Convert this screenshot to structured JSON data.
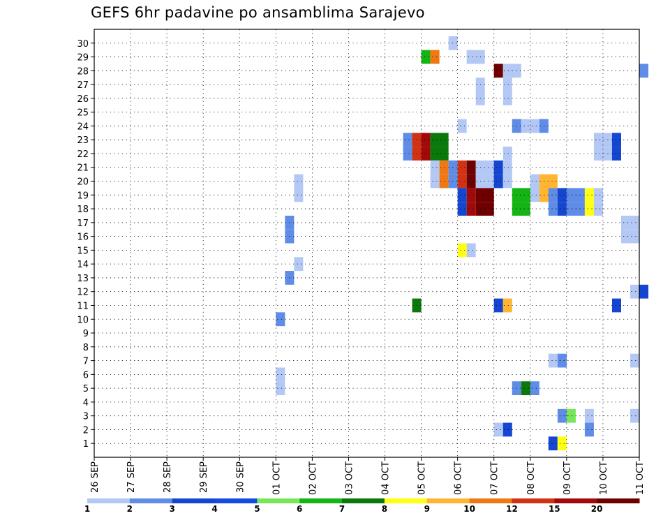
{
  "chart_data": {
    "type": "heatmap",
    "title": "GEFS 6hr padavine po ansamblima Sarajevo",
    "x_axis": {
      "tick_labels": [
        "26 SEP",
        "27 SEP",
        "28 SEP",
        "29 SEP",
        "30 SEP",
        "01 OCT",
        "02 OCT",
        "03 OCT",
        "04 OCT",
        "05 OCT",
        "06 OCT",
        "07 OCT",
        "08 OCT",
        "09 OCT",
        "10 OCT",
        "11 OCT"
      ],
      "range_days": [
        0,
        15
      ],
      "step_hours": 6
    },
    "y_axis": {
      "tick_labels": [
        "1",
        "2",
        "3",
        "4",
        "5",
        "6",
        "7",
        "8",
        "9",
        "10",
        "11",
        "12",
        "13",
        "14",
        "15",
        "16",
        "17",
        "18",
        "19",
        "20",
        "21",
        "22",
        "23",
        "24",
        "25",
        "26",
        "27",
        "28",
        "29",
        "30"
      ],
      "range": [
        0,
        30
      ]
    },
    "grid": true,
    "colorbar": {
      "position": "bottom",
      "colors": [
        "#b4c8f5",
        "#5f8ce6",
        "#1446d2",
        "#144be0",
        "#78e65a",
        "#14b414",
        "#0a780a",
        "#ffff14",
        "#ffb432",
        "#f07814",
        "#d23214",
        "#a00a0a",
        "#6e0000"
      ],
      "labels": [
        "1",
        "2",
        "3",
        "4",
        "5",
        "6",
        "7",
        "8",
        "9",
        "10",
        "12",
        "15",
        "20"
      ],
      "label_index": [
        0,
        1,
        2,
        3,
        4,
        5,
        6,
        7,
        8,
        9,
        10,
        11,
        12
      ]
    },
    "cells": [
      {
        "m": 30,
        "i": 39,
        "len": 1,
        "lvl": 0
      },
      {
        "m": 29,
        "i": 36,
        "len": 1,
        "lvl": 5
      },
      {
        "m": 29,
        "i": 37,
        "len": 1,
        "lvl": 9
      },
      {
        "m": 29,
        "i": 41,
        "len": 2,
        "lvl": 0
      },
      {
        "m": 28,
        "i": 44,
        "len": 1,
        "lvl": 12
      },
      {
        "m": 28,
        "i": 45,
        "len": 2,
        "lvl": 0
      },
      {
        "m": 28,
        "i": 60,
        "len": 1,
        "lvl": 1
      },
      {
        "m": 27,
        "i": 42,
        "len": 1,
        "lvl": 0
      },
      {
        "m": 27,
        "i": 45,
        "len": 1,
        "lvl": 0
      },
      {
        "m": 26,
        "i": 42,
        "len": 1,
        "lvl": 0
      },
      {
        "m": 26,
        "i": 45,
        "len": 1,
        "lvl": 0
      },
      {
        "m": 24,
        "i": 40,
        "len": 1,
        "lvl": 0
      },
      {
        "m": 24,
        "i": 46,
        "len": 1,
        "lvl": 1
      },
      {
        "m": 24,
        "i": 47,
        "len": 2,
        "lvl": 0
      },
      {
        "m": 24,
        "i": 49,
        "len": 1,
        "lvl": 1
      },
      {
        "m": 23,
        "i": 34,
        "len": 1,
        "lvl": 1
      },
      {
        "m": 23,
        "i": 35,
        "len": 1,
        "lvl": 10
      },
      {
        "m": 23,
        "i": 36,
        "len": 1,
        "lvl": 11
      },
      {
        "m": 23,
        "i": 37,
        "len": 2,
        "lvl": 6
      },
      {
        "m": 23,
        "i": 55,
        "len": 2,
        "lvl": 0
      },
      {
        "m": 23,
        "i": 57,
        "len": 1,
        "lvl": 2
      },
      {
        "m": 22,
        "i": 34,
        "len": 1,
        "lvl": 1
      },
      {
        "m": 22,
        "i": 35,
        "len": 1,
        "lvl": 10
      },
      {
        "m": 22,
        "i": 36,
        "len": 1,
        "lvl": 11
      },
      {
        "m": 22,
        "i": 37,
        "len": 2,
        "lvl": 6
      },
      {
        "m": 22,
        "i": 55,
        "len": 2,
        "lvl": 0
      },
      {
        "m": 22,
        "i": 57,
        "len": 1,
        "lvl": 2
      },
      {
        "m": 22,
        "i": 45,
        "len": 1,
        "lvl": 0
      },
      {
        "m": 21,
        "i": 37,
        "len": 1,
        "lvl": 0
      },
      {
        "m": 21,
        "i": 38,
        "len": 1,
        "lvl": 9
      },
      {
        "m": 21,
        "i": 39,
        "len": 1,
        "lvl": 1
      },
      {
        "m": 21,
        "i": 40,
        "len": 1,
        "lvl": 10
      },
      {
        "m": 21,
        "i": 41,
        "len": 1,
        "lvl": 12
      },
      {
        "m": 21,
        "i": 42,
        "len": 2,
        "lvl": 0
      },
      {
        "m": 21,
        "i": 44,
        "len": 1,
        "lvl": 2
      },
      {
        "m": 21,
        "i": 45,
        "len": 1,
        "lvl": 0
      },
      {
        "m": 20,
        "i": 37,
        "len": 1,
        "lvl": 0
      },
      {
        "m": 20,
        "i": 38,
        "len": 1,
        "lvl": 9
      },
      {
        "m": 20,
        "i": 39,
        "len": 1,
        "lvl": 1
      },
      {
        "m": 20,
        "i": 40,
        "len": 1,
        "lvl": 10
      },
      {
        "m": 20,
        "i": 41,
        "len": 1,
        "lvl": 12
      },
      {
        "m": 20,
        "i": 42,
        "len": 2,
        "lvl": 0
      },
      {
        "m": 20,
        "i": 44,
        "len": 1,
        "lvl": 2
      },
      {
        "m": 20,
        "i": 45,
        "len": 1,
        "lvl": 0
      },
      {
        "m": 20,
        "i": 22,
        "len": 1,
        "lvl": 0
      },
      {
        "m": 20,
        "i": 48,
        "len": 1,
        "lvl": 0
      },
      {
        "m": 20,
        "i": 49,
        "len": 2,
        "lvl": 8
      },
      {
        "m": 19,
        "i": 22,
        "len": 1,
        "lvl": 0
      },
      {
        "m": 19,
        "i": 48,
        "len": 1,
        "lvl": 0
      },
      {
        "m": 19,
        "i": 49,
        "len": 2,
        "lvl": 8
      },
      {
        "m": 19,
        "i": 40,
        "len": 1,
        "lvl": 2
      },
      {
        "m": 19,
        "i": 41,
        "len": 1,
        "lvl": 11
      },
      {
        "m": 19,
        "i": 42,
        "len": 2,
        "lvl": 12
      },
      {
        "m": 19,
        "i": 46,
        "len": 2,
        "lvl": 5
      },
      {
        "m": 19,
        "i": 50,
        "len": 1,
        "lvl": 1
      },
      {
        "m": 19,
        "i": 51,
        "len": 1,
        "lvl": 2
      },
      {
        "m": 19,
        "i": 52,
        "len": 2,
        "lvl": 1
      },
      {
        "m": 19,
        "i": 54,
        "len": 1,
        "lvl": 7
      },
      {
        "m": 19,
        "i": 55,
        "len": 1,
        "lvl": 0
      },
      {
        "m": 18,
        "i": 40,
        "len": 1,
        "lvl": 2
      },
      {
        "m": 18,
        "i": 41,
        "len": 1,
        "lvl": 11
      },
      {
        "m": 18,
        "i": 42,
        "len": 2,
        "lvl": 12
      },
      {
        "m": 18,
        "i": 46,
        "len": 2,
        "lvl": 5
      },
      {
        "m": 18,
        "i": 50,
        "len": 1,
        "lvl": 1
      },
      {
        "m": 18,
        "i": 51,
        "len": 1,
        "lvl": 2
      },
      {
        "m": 18,
        "i": 52,
        "len": 2,
        "lvl": 1
      },
      {
        "m": 18,
        "i": 54,
        "len": 1,
        "lvl": 7
      },
      {
        "m": 18,
        "i": 55,
        "len": 1,
        "lvl": 0
      },
      {
        "m": 17,
        "i": 21,
        "len": 1,
        "lvl": 1
      },
      {
        "m": 17,
        "i": 58,
        "len": 2,
        "lvl": 0
      },
      {
        "m": 16,
        "i": 21,
        "len": 1,
        "lvl": 1
      },
      {
        "m": 16,
        "i": 58,
        "len": 2,
        "lvl": 0
      },
      {
        "m": 15,
        "i": 40,
        "len": 1,
        "lvl": 7
      },
      {
        "m": 15,
        "i": 41,
        "len": 1,
        "lvl": 0
      },
      {
        "m": 14,
        "i": 22,
        "len": 1,
        "lvl": 0
      },
      {
        "m": 13,
        "i": 21,
        "len": 1,
        "lvl": 1
      },
      {
        "m": 12,
        "i": 59,
        "len": 1,
        "lvl": 0
      },
      {
        "m": 12,
        "i": 60,
        "len": 1,
        "lvl": 2
      },
      {
        "m": 11,
        "i": 35,
        "len": 1,
        "lvl": 6
      },
      {
        "m": 11,
        "i": 44,
        "len": 1,
        "lvl": 2
      },
      {
        "m": 11,
        "i": 45,
        "len": 1,
        "lvl": 8
      },
      {
        "m": 11,
        "i": 57,
        "len": 1,
        "lvl": 2
      },
      {
        "m": 10,
        "i": 20,
        "len": 1,
        "lvl": 1
      },
      {
        "m": 7,
        "i": 50,
        "len": 1,
        "lvl": 0
      },
      {
        "m": 7,
        "i": 51,
        "len": 1,
        "lvl": 1
      },
      {
        "m": 7,
        "i": 59,
        "len": 1,
        "lvl": 0
      },
      {
        "m": 6,
        "i": 20,
        "len": 1,
        "lvl": 0
      },
      {
        "m": 5,
        "i": 20,
        "len": 1,
        "lvl": 0
      },
      {
        "m": 5,
        "i": 46,
        "len": 1,
        "lvl": 1
      },
      {
        "m": 5,
        "i": 47,
        "len": 1,
        "lvl": 6
      },
      {
        "m": 5,
        "i": 48,
        "len": 1,
        "lvl": 1
      },
      {
        "m": 3,
        "i": 51,
        "len": 1,
        "lvl": 1
      },
      {
        "m": 3,
        "i": 52,
        "len": 1,
        "lvl": 4
      },
      {
        "m": 3,
        "i": 54,
        "len": 1,
        "lvl": 0
      },
      {
        "m": 3,
        "i": 59,
        "len": 1,
        "lvl": 0
      },
      {
        "m": 2,
        "i": 44,
        "len": 1,
        "lvl": 0
      },
      {
        "m": 2,
        "i": 45,
        "len": 1,
        "lvl": 2
      },
      {
        "m": 2,
        "i": 54,
        "len": 1,
        "lvl": 1
      },
      {
        "m": 1,
        "i": 50,
        "len": 1,
        "lvl": 2
      },
      {
        "m": 1,
        "i": 51,
        "len": 1,
        "lvl": 7
      }
    ]
  }
}
